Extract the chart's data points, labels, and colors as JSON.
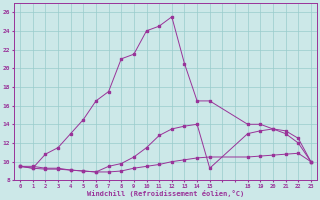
{
  "xlabel": "Windchill (Refroidissement éolien,°C)",
  "background_color": "#cce8e8",
  "grid_color": "#99cccc",
  "line_color": "#993399",
  "xlim": [
    -0.5,
    23.5
  ],
  "ylim": [
    8,
    27
  ],
  "yticks": [
    8,
    10,
    12,
    14,
    16,
    18,
    20,
    22,
    24,
    26
  ],
  "xtick_labels": [
    "0",
    "1",
    "2",
    "3",
    "4",
    "5",
    "6",
    "7",
    "8",
    "9",
    "10",
    "11",
    "12",
    "13",
    "14",
    "15",
    "",
    "",
    "18",
    "19",
    "20",
    "21",
    "22",
    "23"
  ],
  "xtick_pos": [
    0,
    1,
    2,
    3,
    4,
    5,
    6,
    7,
    8,
    9,
    10,
    11,
    12,
    13,
    14,
    15,
    16,
    17,
    18,
    19,
    20,
    21,
    22,
    23
  ],
  "series1_x": [
    0,
    1,
    2,
    3,
    4,
    5,
    6,
    7,
    8,
    9,
    10,
    11,
    12,
    13,
    14,
    15,
    18,
    19,
    20,
    21,
    22,
    23
  ],
  "series1_y": [
    9.5,
    9.5,
    9.3,
    9.3,
    9.1,
    9.0,
    8.9,
    8.9,
    9.0,
    9.3,
    9.5,
    9.7,
    10.0,
    10.2,
    10.4,
    10.5,
    10.5,
    10.6,
    10.7,
    10.8,
    10.9,
    10.0
  ],
  "series2_x": [
    0,
    1,
    2,
    3,
    4,
    5,
    6,
    7,
    8,
    9,
    10,
    11,
    12,
    13,
    14,
    15,
    18,
    19,
    20,
    21,
    22,
    23
  ],
  "series2_y": [
    9.5,
    9.3,
    9.2,
    9.2,
    9.1,
    9.0,
    8.9,
    9.5,
    9.8,
    10.5,
    11.5,
    12.8,
    13.5,
    13.8,
    14.0,
    9.3,
    13.0,
    13.3,
    13.5,
    13.3,
    12.5,
    10.0
  ],
  "series3_x": [
    0,
    1,
    2,
    3,
    4,
    5,
    6,
    7,
    8,
    9,
    10,
    11,
    12,
    13,
    14,
    15,
    18,
    19,
    20,
    21,
    22,
    23
  ],
  "series3_y": [
    9.5,
    9.3,
    10.8,
    11.5,
    13.0,
    14.5,
    16.5,
    17.5,
    21.0,
    21.5,
    24.0,
    24.5,
    25.5,
    20.5,
    16.5,
    16.5,
    14.0,
    14.0,
    13.5,
    13.0,
    12.0,
    10.0
  ]
}
